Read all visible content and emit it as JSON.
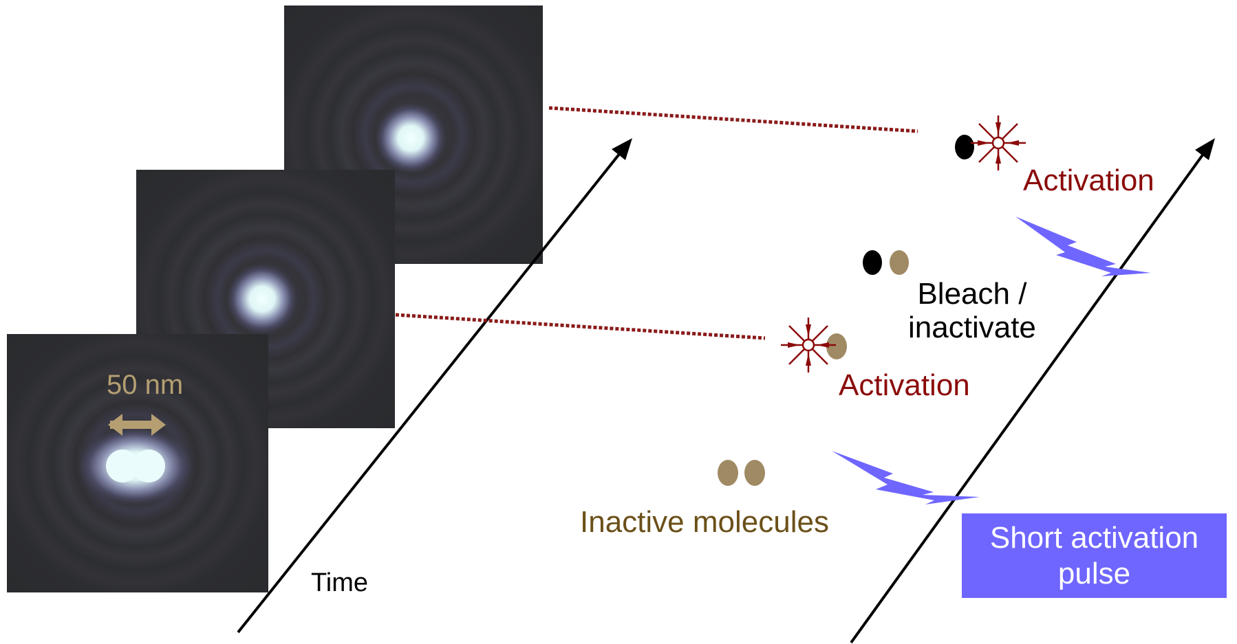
{
  "panels": {
    "scale_label": "50 nm"
  },
  "labels": {
    "time": "Time",
    "activation_top": "Activation",
    "bleach_line1": "Bleach /",
    "bleach_line2": "inactivate",
    "activation_mid": "Activation",
    "inactive": "Inactive molecules",
    "pulse_line1": "Short activation",
    "pulse_line2": "pulse"
  },
  "colors": {
    "activation": "#8b0a0a",
    "inactive_text": "#6b5019",
    "molecule_inactive": "#a08a64",
    "molecule_bleached": "#000000",
    "pulse": "#6f66ff",
    "scale": "#b59f72",
    "dotted_line": "#8b1a1a",
    "panel_bg": "#2e2f33",
    "spot": "#e6fafa"
  }
}
